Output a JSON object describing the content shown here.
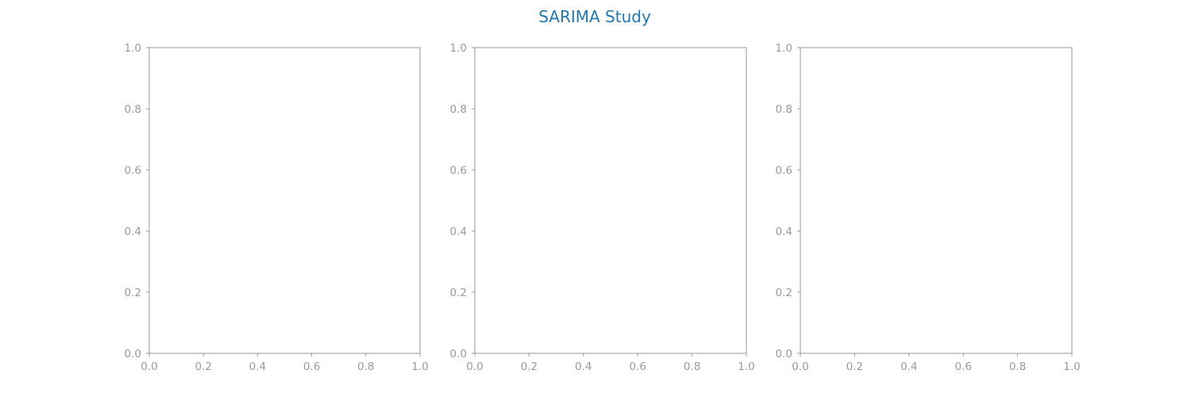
{
  "title": "SARIMA Study",
  "colors": {
    "title": "#1f77b4",
    "axis": "#999999",
    "tick_text": "#999999",
    "background": "#ffffff"
  },
  "chart_data": [
    {
      "type": "line",
      "title": "",
      "xlabel": "",
      "ylabel": "",
      "xlim": [
        0.0,
        1.0
      ],
      "ylim": [
        0.0,
        1.0
      ],
      "grid": false,
      "series": [],
      "x_ticks": [
        "0.0",
        "0.2",
        "0.4",
        "0.6",
        "0.8",
        "1.0"
      ],
      "y_ticks": [
        "0.0",
        "0.2",
        "0.4",
        "0.6",
        "0.8",
        "1.0"
      ]
    },
    {
      "type": "line",
      "title": "",
      "xlabel": "",
      "ylabel": "",
      "xlim": [
        0.0,
        1.0
      ],
      "ylim": [
        0.0,
        1.0
      ],
      "grid": false,
      "series": [],
      "x_ticks": [
        "0.0",
        "0.2",
        "0.4",
        "0.6",
        "0.8",
        "1.0"
      ],
      "y_ticks": [
        "0.0",
        "0.2",
        "0.4",
        "0.6",
        "0.8",
        "1.0"
      ]
    },
    {
      "type": "line",
      "title": "",
      "xlabel": "",
      "ylabel": "",
      "xlim": [
        0.0,
        1.0
      ],
      "ylim": [
        0.0,
        1.0
      ],
      "grid": false,
      "series": [],
      "x_ticks": [
        "0.0",
        "0.2",
        "0.4",
        "0.6",
        "0.8",
        "1.0"
      ],
      "y_ticks": [
        "0.0",
        "0.2",
        "0.4",
        "0.6",
        "0.8",
        "1.0"
      ]
    }
  ]
}
